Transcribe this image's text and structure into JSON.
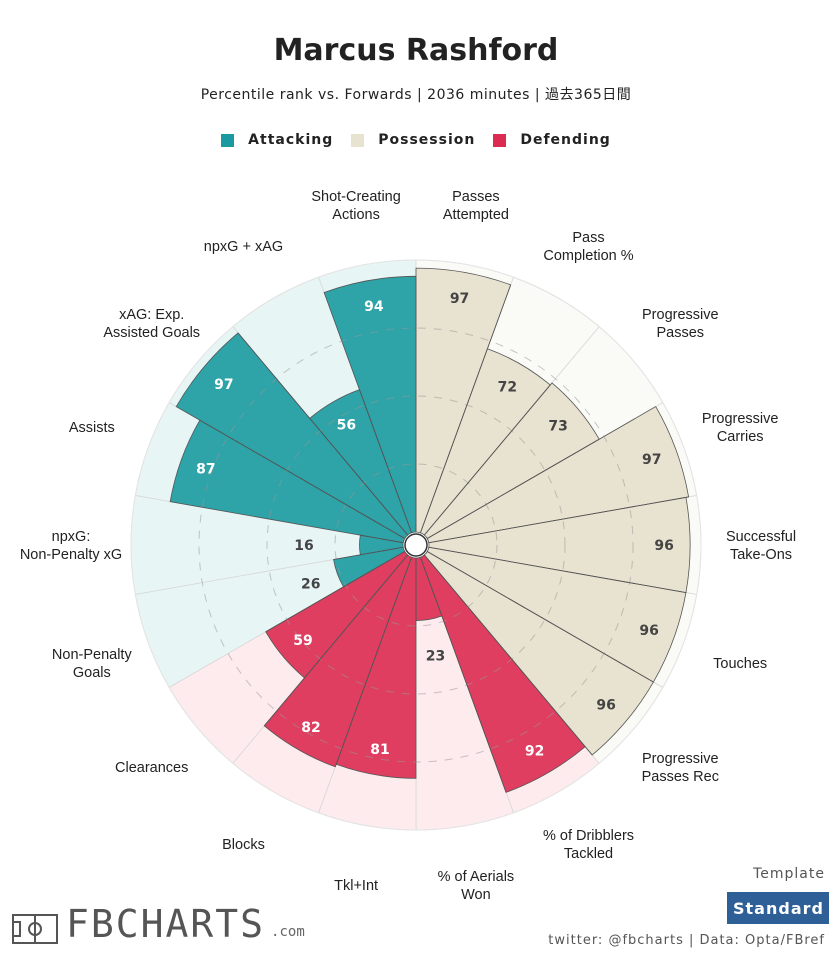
{
  "header": {
    "title": "Marcus Rashford",
    "subtitle": "Percentile rank vs. Forwards | 2036 minutes | 過去365日間"
  },
  "legend": [
    {
      "label": "Attacking",
      "color": "#1a9aa0"
    },
    {
      "label": "Possession",
      "color": "#e8e2d0"
    },
    {
      "label": "Defending",
      "color": "#dc2b50"
    }
  ],
  "chart_data": {
    "type": "polar-bar",
    "rlim": [
      0,
      100
    ],
    "grid_rings": [
      25,
      50,
      75
    ],
    "series": [
      {
        "name": "Attacking",
        "color": "#1a9aa0",
        "background": "#e8f5f5",
        "categories": [
          "Shot-Creating Actions",
          "npxG + xAG",
          "xAG: Exp. Assisted Goals",
          "Assists",
          "npxG: Non-Penalty xG",
          "Non-Penalty Goals"
        ],
        "values": [
          94,
          56,
          97,
          87,
          16,
          26
        ]
      },
      {
        "name": "Possession",
        "color": "#e8e2d0",
        "background": "#fafaf7",
        "categories": [
          "Passes Attempted",
          "Pass Completion %",
          "Progressive Passes",
          "Progressive Carries",
          "Successful Take-Ons",
          "Touches",
          "Progressive Passes Rec"
        ],
        "values": [
          97,
          72,
          73,
          97,
          96,
          96,
          96
        ]
      },
      {
        "name": "Defending",
        "color": "#dc2b50",
        "background": "#fdebee",
        "categories": [
          "% of Dribblers Tackled",
          "% of Aerials Won",
          "Tkl+Int",
          "Blocks",
          "Clearances"
        ],
        "values": [
          92,
          23,
          81,
          82,
          59
        ]
      }
    ]
  },
  "footer": {
    "template_title": "Template",
    "template_button": "Standard",
    "credits": "twitter: @fbcharts | Data: Opta/FBref",
    "brand_name": "FBCHARTS",
    "brand_domain": ".com"
  }
}
